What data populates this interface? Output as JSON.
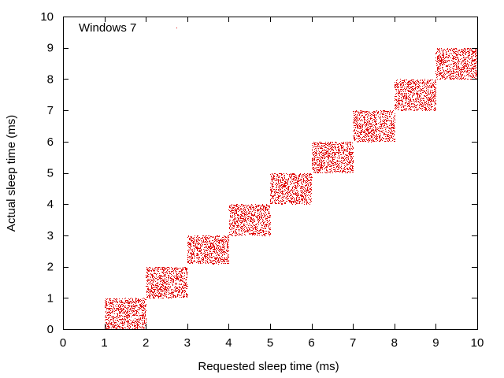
{
  "chart_data": {
    "type": "scatter",
    "title": "",
    "xlabel": "Requested sleep time (ms)",
    "ylabel": "Actual sleep time (ms)",
    "xlim": [
      0,
      10
    ],
    "ylim": [
      0,
      10
    ],
    "xticks": [
      "0",
      "1",
      "2",
      "3",
      "4",
      "5",
      "6",
      "7",
      "8",
      "9",
      "10"
    ],
    "yticks": [
      "0",
      "1",
      "2",
      "3",
      "4",
      "5",
      "6",
      "7",
      "8",
      "9",
      "10"
    ],
    "grid": false,
    "legend": {
      "position": "top-left",
      "entries": [
        "Windows 7"
      ]
    },
    "series": [
      {
        "name": "Windows 7",
        "color": "#e00000",
        "clusters": [
          {
            "x": [
              1,
              2
            ],
            "y": [
              0.0,
              1.0
            ]
          },
          {
            "x": [
              2,
              3
            ],
            "y": [
              1.0,
              2.0
            ]
          },
          {
            "x": [
              3,
              4
            ],
            "y": [
              2.1,
              3.0
            ]
          },
          {
            "x": [
              4,
              5
            ],
            "y": [
              3.0,
              4.0
            ]
          },
          {
            "x": [
              5,
              6
            ],
            "y": [
              4.0,
              5.0
            ]
          },
          {
            "x": [
              6,
              7
            ],
            "y": [
              5.0,
              6.0
            ]
          },
          {
            "x": [
              7,
              8
            ],
            "y": [
              6.0,
              7.0
            ]
          },
          {
            "x": [
              8,
              9
            ],
            "y": [
              7.0,
              8.0
            ]
          },
          {
            "x": [
              9,
              10
            ],
            "y": [
              8.0,
              9.0
            ]
          }
        ]
      }
    ]
  }
}
